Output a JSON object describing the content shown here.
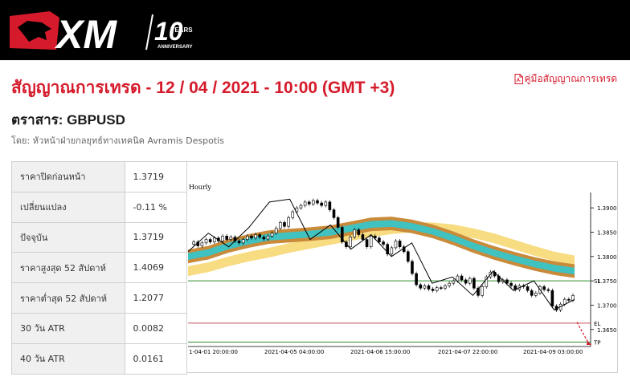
{
  "header": {
    "brand": "XM",
    "anniversary_number": "10",
    "anniversary_years": "YEARS",
    "anniversary_label": "ANNIVERSARY"
  },
  "signal": {
    "title": "สัญญาณการเทรด - 12 / 04 / 2021 - 10:00 (GMT +3)",
    "guide_link": "คู่มือสัญญาณการเทรด",
    "symbol": "ตราสาร: GBPUSD",
    "byline": "โดย: หัวหน้าฝ่ายกลยุทธ์ทางเทคนิค Avramis Despotis"
  },
  "stats": [
    {
      "label": "ราคาปิดก่อนหน้า",
      "value": "1.3719"
    },
    {
      "label": "เปลี่ยนแปลง",
      "value": "-0.11 %"
    },
    {
      "label": "ปัจจุบัน",
      "value": "1.3719"
    },
    {
      "label": "ราคาสูงสุด 52 สัปดาห์",
      "value": "1.4069"
    },
    {
      "label": "ราคาต่ำสุด 52 สัปดาห์",
      "value": "1.2077"
    },
    {
      "label": "30 วัน ATR",
      "value": "0.0082"
    },
    {
      "label": "40 วัน ATR",
      "value": "0.0161"
    }
  ],
  "colors": {
    "brand_red": "#d51b2b",
    "band_outer": "#c98a3a",
    "band_inner": "#3fc2c0",
    "band_slow": "#f7dc82",
    "sl_line": "#2e8b2e",
    "el_line": "#c0505a",
    "tp_line": "#2e8b2e"
  },
  "chart_data": {
    "type": "line",
    "title": "Hourly",
    "y_ticks": [
      "1.3900",
      "1.3850",
      "1.3800",
      "1.3750",
      "1.3700",
      "1.3650"
    ],
    "ylim": [
      1.3615,
      1.3925
    ],
    "x_ticks": [
      "1-04-01 20:00:00",
      "2021-04-05 04:00:00",
      "2021-04-06 15:00:00",
      "2021-04-07 22:00:00",
      "2021-04-09 03:00:00"
    ],
    "levels": [
      {
        "label": "SL",
        "value": 1.375
      },
      {
        "label": "EL",
        "value": 1.3663
      },
      {
        "label": "TP",
        "value": 1.3624
      }
    ],
    "price": [
      1.3825,
      1.383,
      1.3822,
      1.3828,
      1.3835,
      1.383,
      1.3838,
      1.3832,
      1.3842,
      1.3835,
      1.384,
      1.3832,
      1.3828,
      1.3835,
      1.3842,
      1.3838,
      1.3845,
      1.384,
      1.3836,
      1.3842,
      1.3848,
      1.3858,
      1.387,
      1.3862,
      1.388,
      1.3892,
      1.39,
      1.3905,
      1.3912,
      1.3908,
      1.3915,
      1.391,
      1.3905,
      1.3912,
      1.3896,
      1.388,
      1.386,
      1.383,
      1.382,
      1.384,
      1.3855,
      1.3845,
      1.3835,
      1.382,
      1.3842,
      1.3838,
      1.383,
      1.3825,
      1.3805,
      1.3818,
      1.3832,
      1.382,
      1.381,
      1.379,
      1.3765,
      1.3742,
      1.3735,
      1.374,
      1.3733,
      1.373,
      1.3736,
      1.3735,
      1.374,
      1.3745,
      1.375,
      1.376,
      1.3752,
      1.3745,
      1.3755,
      1.3735,
      1.372,
      1.3738,
      1.3758,
      1.3768,
      1.376,
      1.3748,
      1.3752,
      1.3745,
      1.374,
      1.3732,
      1.374,
      1.3738,
      1.373,
      1.372,
      1.3725,
      1.3738,
      1.3732,
      1.373,
      1.3698,
      1.369,
      1.3702,
      1.3712,
      1.371,
      1.372
    ],
    "zigzag": [
      1.381,
      1.3848,
      1.382,
      1.386,
      1.3912,
      1.3918,
      1.3835,
      1.3865,
      1.3815,
      1.3845,
      1.38,
      1.3828,
      1.3745,
      1.3758,
      1.372,
      1.377,
      1.373,
      1.375,
      1.369,
      1.3712
    ],
    "band_fast_mid": [
      1.38,
      1.3808,
      1.3822,
      1.3832,
      1.384,
      1.3843,
      1.3846,
      1.385,
      1.3858,
      1.3866,
      1.3868,
      1.3862,
      1.3852,
      1.3838,
      1.3822,
      1.3808,
      1.3796,
      1.3785,
      1.3776,
      1.377
    ],
    "band_slow_mid": [
      1.377,
      1.3778,
      1.379,
      1.38,
      1.3808,
      1.3818,
      1.3826,
      1.3834,
      1.3842,
      1.385,
      1.3856,
      1.386,
      1.386,
      1.3856,
      1.3848,
      1.3838,
      1.3825,
      1.3812,
      1.38,
      1.3792
    ]
  }
}
